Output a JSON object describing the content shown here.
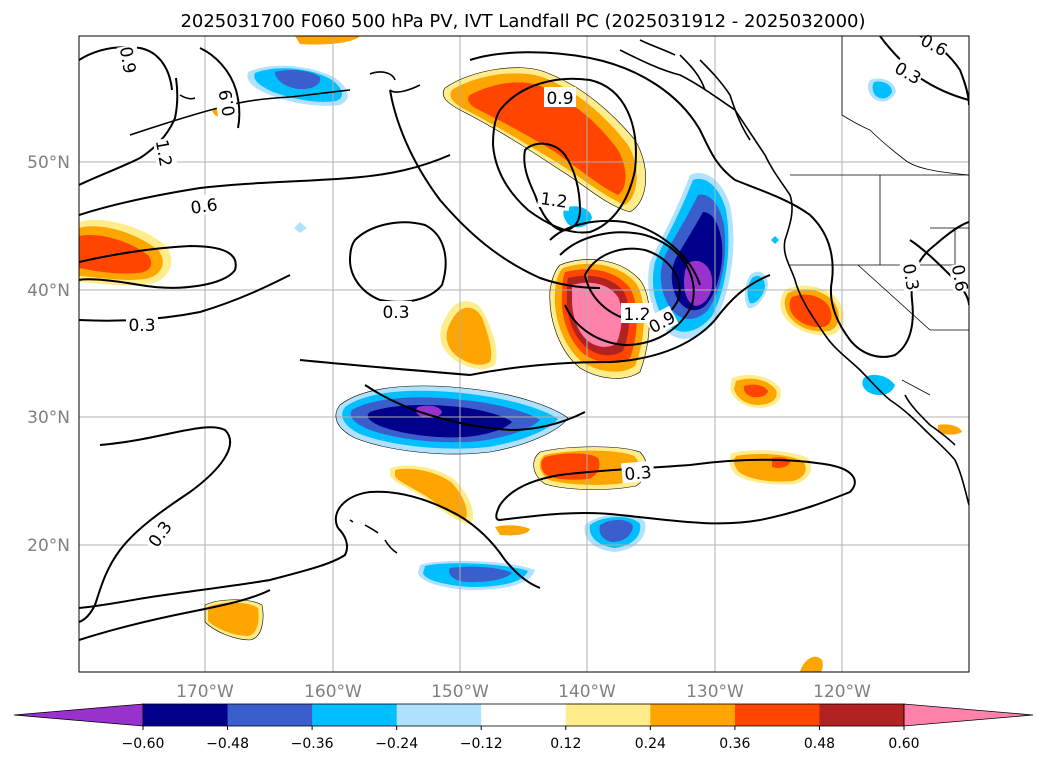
{
  "title": "2025031700 F060 500 hPa PV, IVT Landfall PC (2025031912 - 2025032000)",
  "lat_labels": [
    "50°N",
    "40°N",
    "30°N",
    "20°N"
  ],
  "lon_labels": [
    "170°W",
    "160°W",
    "150°W",
    "140°W",
    "130°W",
    "120°W"
  ],
  "colorbar": {
    "colors": [
      "#9932cc",
      "#00008b",
      "#3a5fcd",
      "#00bfff",
      "#b0e2ff",
      "#ffffff",
      "#ffec8b",
      "#ffa500",
      "#ff4500",
      "#b22222",
      "#ff82ab"
    ],
    "ticks": [
      "−0.60",
      "−0.48",
      "−0.36",
      "−0.24",
      "−0.12",
      "0.12",
      "0.24",
      "0.36",
      "0.48",
      "0.60"
    ]
  },
  "contour_labels": [
    "0.9",
    "0.9",
    "1.2",
    "0.6",
    "0.3",
    "0.9",
    "1.2",
    "0.3",
    "1.2",
    "0.9",
    "0.3",
    "0.3",
    "0.6",
    "0.3",
    "0.6",
    "0.3"
  ]
}
